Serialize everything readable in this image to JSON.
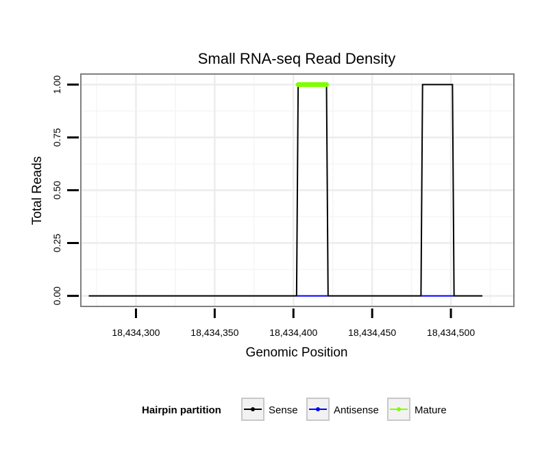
{
  "chart_data": {
    "type": "line",
    "title": "Small RNA-seq Read Density",
    "xlabel": "Genomic Position",
    "ylabel": "Total Reads",
    "xlim": [
      18434265,
      18434540
    ],
    "ylim": [
      -0.05,
      1.05
    ],
    "x_ticks": [
      18434300,
      18434350,
      18434400,
      18434450,
      18434500
    ],
    "x_tick_labels": [
      "18,434,300",
      "18,434,350",
      "18,434,400",
      "18,434,450",
      "18,434,500"
    ],
    "y_ticks": [
      0,
      0.25,
      0.5,
      0.75,
      1.0
    ],
    "y_tick_labels": [
      "0.00",
      "0.25",
      "0.50",
      "0.75",
      "1.00"
    ],
    "grid": true,
    "series": [
      {
        "name": "Sense",
        "color": "#000000",
        "x": [
          18434270,
          18434402,
          18434403,
          18434421,
          18434422,
          18434481,
          18434482,
          18434501,
          18434502,
          18434520
        ],
        "y": [
          0,
          0,
          1,
          1,
          0,
          0,
          1,
          1,
          0,
          0
        ]
      },
      {
        "name": "Antisense",
        "color": "#0000ff",
        "x": [
          18434402,
          18434422,
          18434481,
          18434502
        ],
        "y": [
          0,
          0,
          0,
          0
        ],
        "segments": [
          [
            0,
            1
          ],
          [
            2,
            3
          ]
        ]
      },
      {
        "name": "Mature",
        "color": "#7fff00",
        "x": [
          18434403,
          18434421
        ],
        "y": [
          1,
          1
        ]
      }
    ],
    "legend": {
      "position": "bottom",
      "title": "Hairpin partition",
      "items": [
        {
          "label": "Sense",
          "color": "#000000"
        },
        {
          "label": "Antisense",
          "color": "#0000ff"
        },
        {
          "label": "Mature",
          "color": "#7fff00"
        }
      ]
    }
  }
}
